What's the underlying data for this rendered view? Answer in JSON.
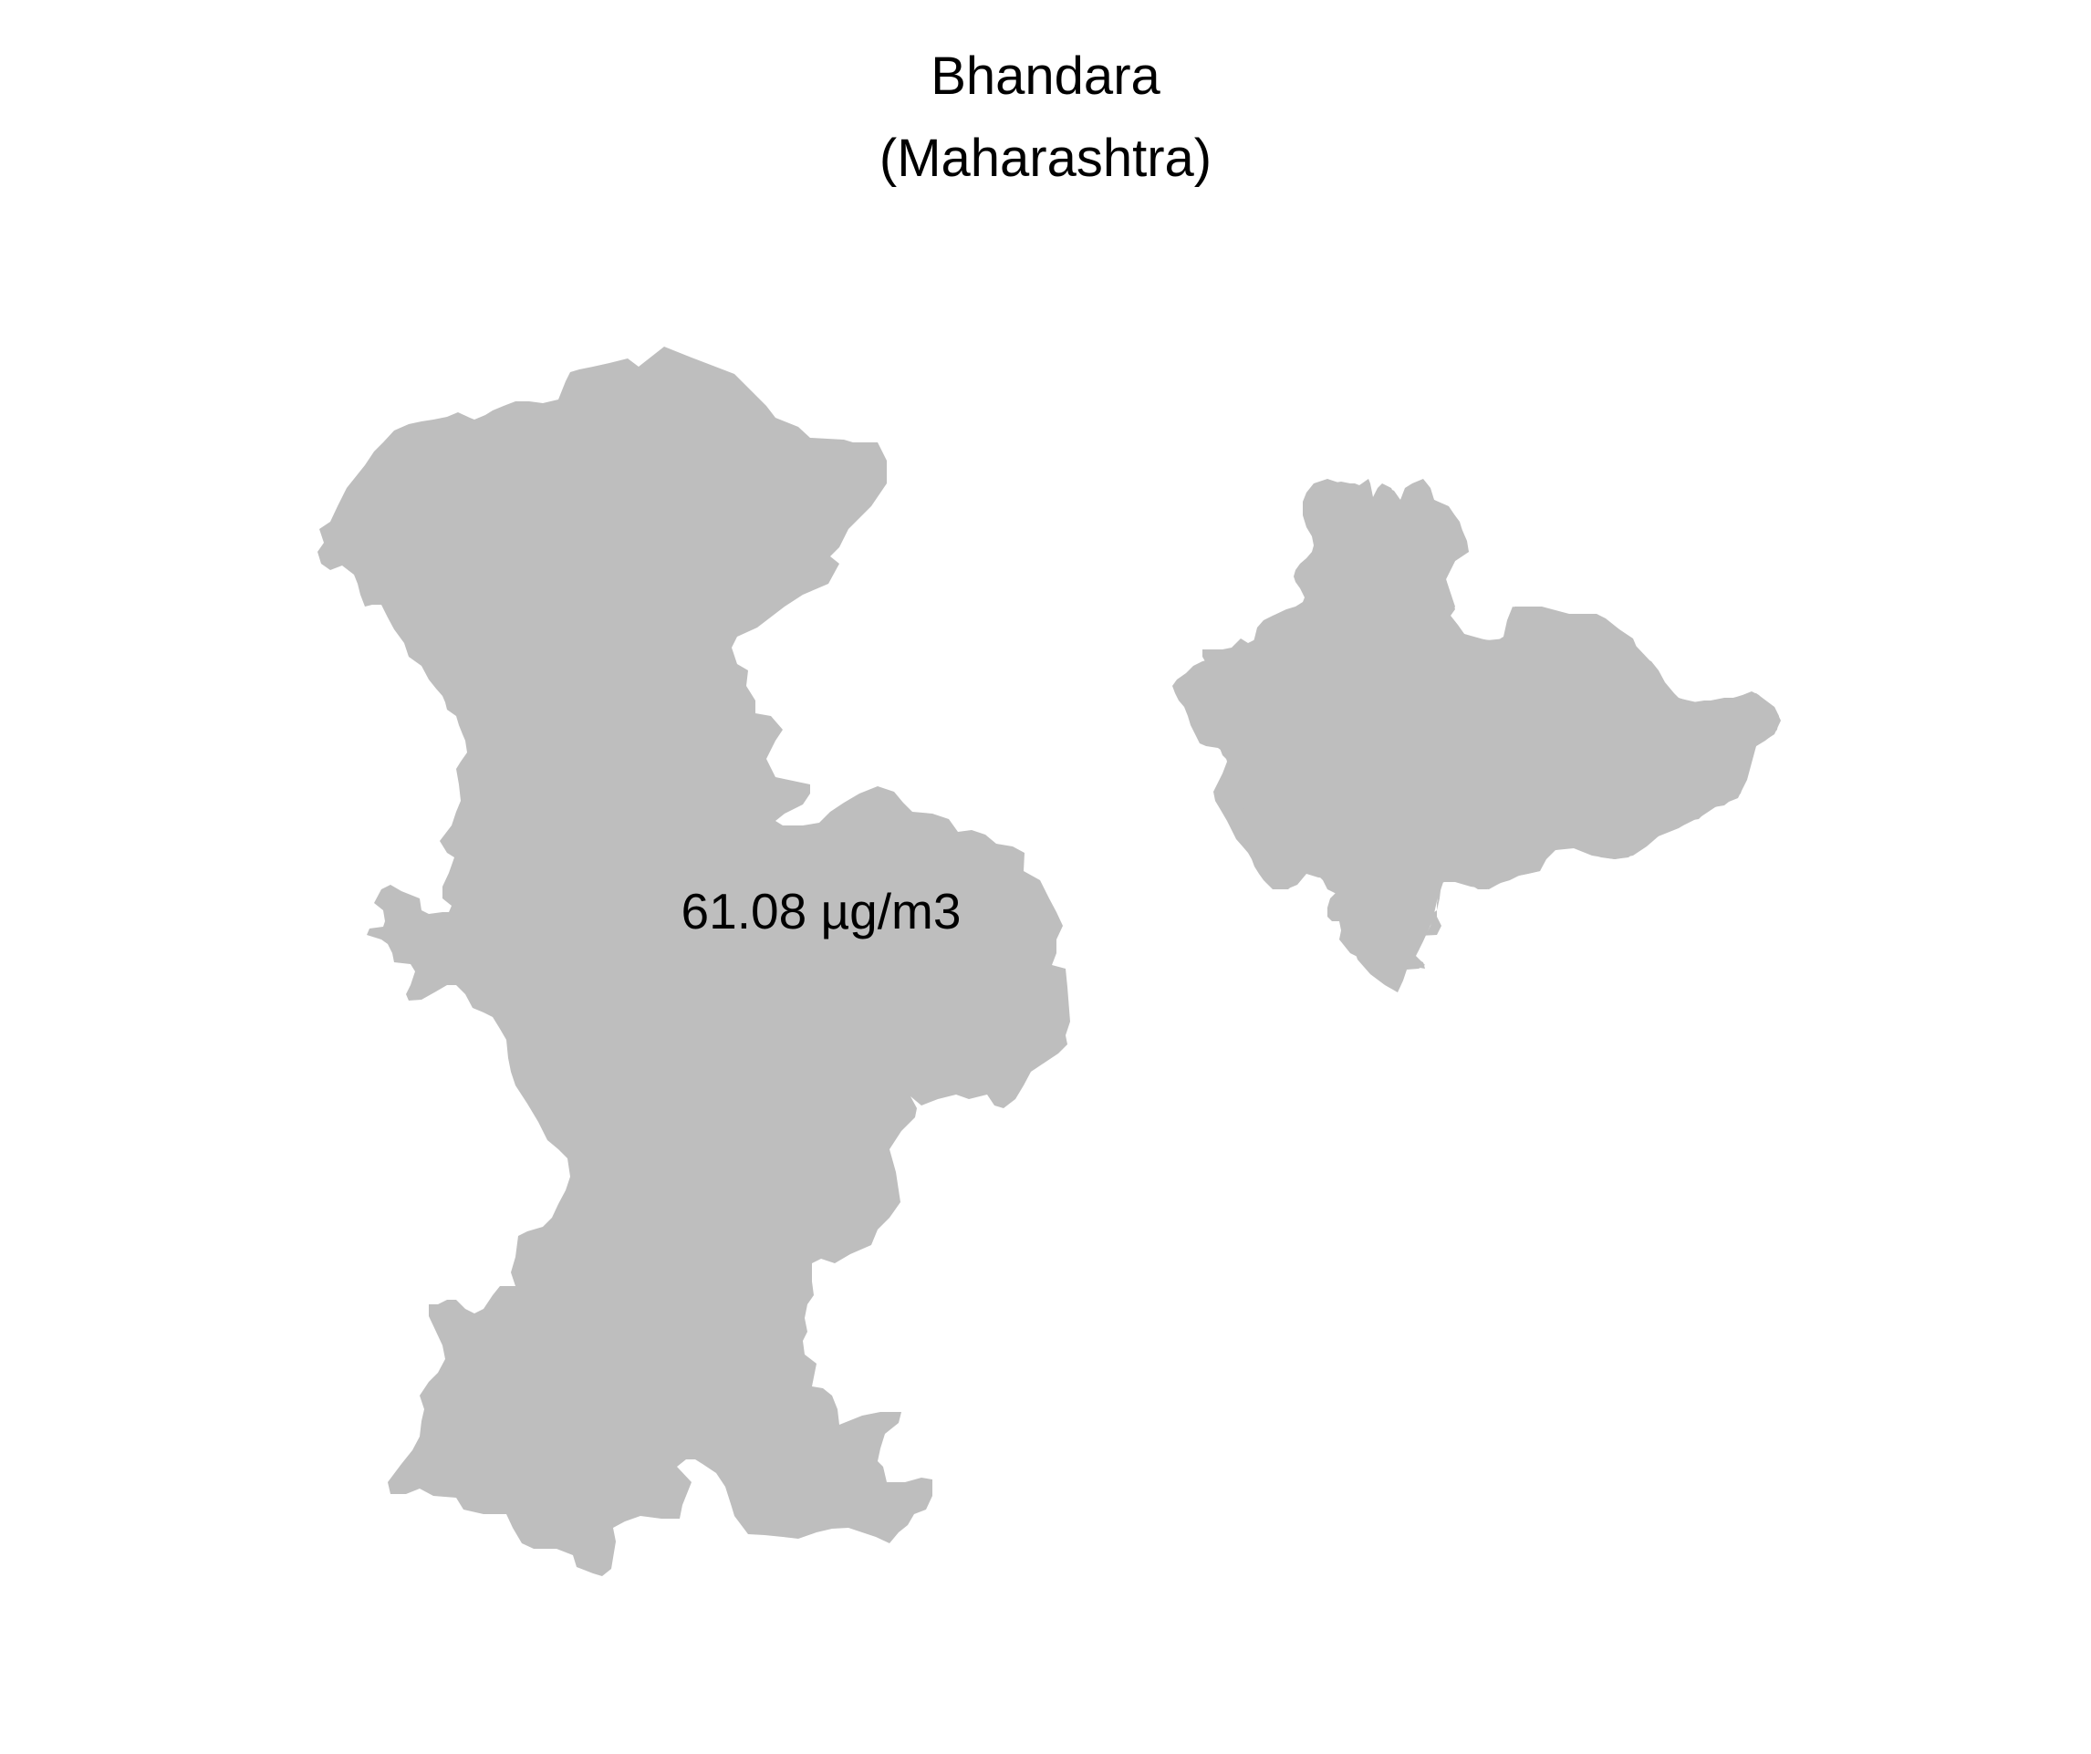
{
  "map": {
    "title_line1": "Bhandara",
    "title_line2": "(Maharashtra)",
    "value_label": "61.08 µg/m3",
    "region_fill": "#bebebe",
    "background": "#ffffff"
  }
}
